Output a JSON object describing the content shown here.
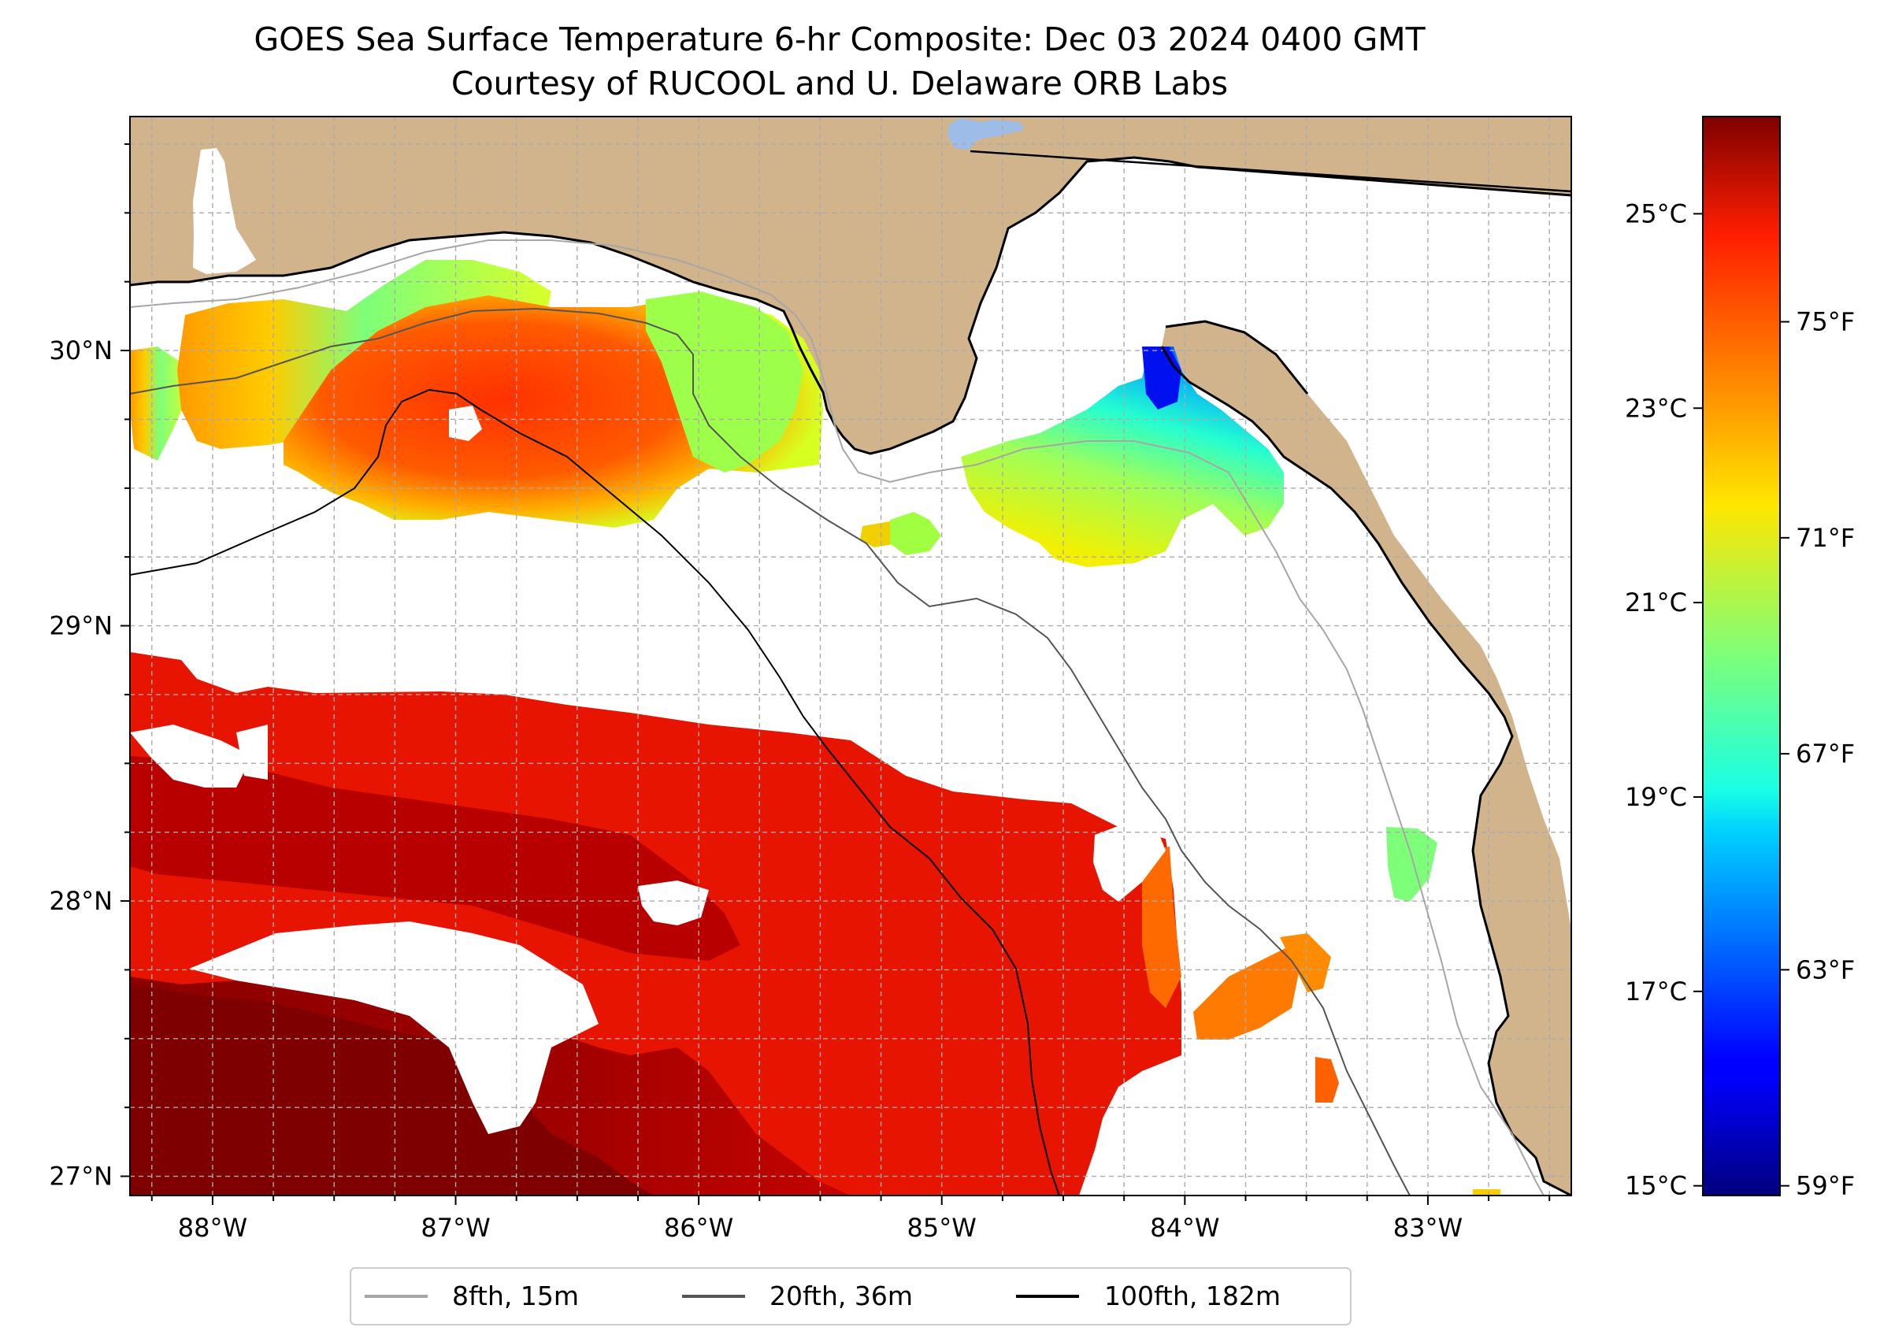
{
  "title": {
    "line1": "GOES Sea Surface Temperature 6-hr Composite: Dec 03 2024 0400 GMT",
    "line2": "Courtesy of RUCOOL and U. Delaware ORB Labs"
  },
  "map": {
    "extent": {
      "lon_min": -88.34,
      "lon_max": -82.41,
      "lat_min": 26.93,
      "lat_max": 30.85
    },
    "land_color": "#d2b48c",
    "coast_color": "#000000",
    "grid_color": "#aaaaaa"
  },
  "axes": {
    "lat_ticks": [
      {
        "value": 27,
        "label": "27°N"
      },
      {
        "value": 28,
        "label": "28°N"
      },
      {
        "value": 29,
        "label": "29°N"
      },
      {
        "value": 30,
        "label": "30°N"
      }
    ],
    "lon_ticks": [
      {
        "value": -88,
        "label": "88°W"
      },
      {
        "value": -87,
        "label": "87°W"
      },
      {
        "value": -86,
        "label": "86°W"
      },
      {
        "value": -85,
        "label": "85°W"
      },
      {
        "value": -84,
        "label": "84°W"
      },
      {
        "value": -83,
        "label": "83°W"
      }
    ]
  },
  "colorbar": {
    "celsius_ticks": [
      {
        "value": 15,
        "label": "15°C"
      },
      {
        "value": 17,
        "label": "17°C"
      },
      {
        "value": 19,
        "label": "19°C"
      },
      {
        "value": 21,
        "label": "21°C"
      },
      {
        "value": 23,
        "label": "23°C"
      },
      {
        "value": 25,
        "label": "25°C"
      }
    ],
    "fahrenheit_ticks": [
      {
        "value": 59,
        "label": "59°F"
      },
      {
        "value": 63,
        "label": "63°F"
      },
      {
        "value": 67,
        "label": "67°F"
      },
      {
        "value": 71,
        "label": "71°F"
      },
      {
        "value": 75,
        "label": "75°F"
      }
    ],
    "range_c": [
      14.9,
      26.0
    ],
    "colormap": "jet"
  },
  "legend": {
    "entries": [
      {
        "label": "8fth, 15m",
        "color": "#a6a6a6"
      },
      {
        "label": "20fth, 36m",
        "color": "#555555"
      },
      {
        "label": "100fth, 182m",
        "color": "#000000"
      }
    ]
  }
}
